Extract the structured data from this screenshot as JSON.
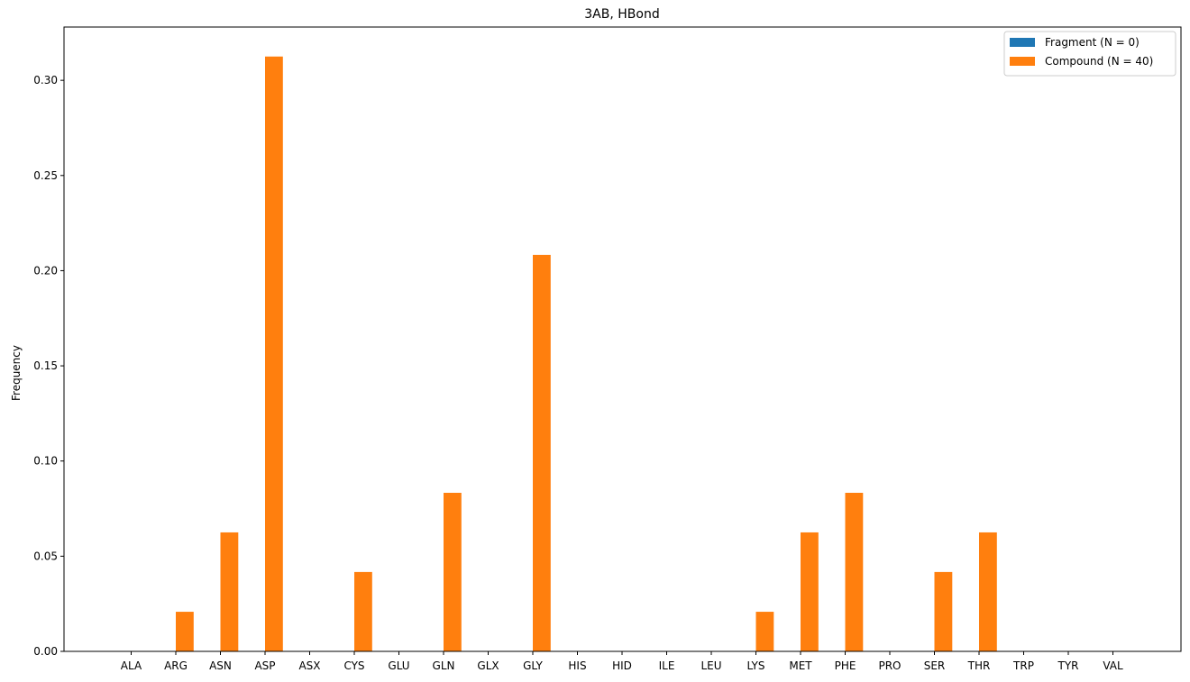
{
  "chart_data": {
    "type": "bar",
    "title": "3AB, HBond",
    "xlabel": "",
    "ylabel": "Frequency",
    "ylim": [
      0,
      0.328
    ],
    "yticks": [
      "0.00",
      "0.05",
      "0.10",
      "0.15",
      "0.20",
      "0.25",
      "0.30"
    ],
    "grid": false,
    "legend_position": "top-right",
    "categories": [
      "ALA",
      "ARG",
      "ASN",
      "ASP",
      "ASX",
      "CYS",
      "GLU",
      "GLN",
      "GLX",
      "GLY",
      "HIS",
      "HID",
      "ILE",
      "LEU",
      "LYS",
      "MET",
      "PHE",
      "PRO",
      "SER",
      "THR",
      "TRP",
      "TYR",
      "VAL"
    ],
    "series": [
      {
        "name": "Fragment (N = 0)",
        "color": "#1f77b4",
        "values": [
          0,
          0,
          0,
          0,
          0,
          0,
          0,
          0,
          0,
          0,
          0,
          0,
          0,
          0,
          0,
          0,
          0,
          0,
          0,
          0,
          0,
          0,
          0
        ]
      },
      {
        "name": "Compound (N = 40)",
        "color": "#ff7f0e",
        "values": [
          0,
          0.0208,
          0.0625,
          0.3125,
          0,
          0.0417,
          0,
          0.0833,
          0,
          0.2083,
          0,
          0,
          0,
          0,
          0.0208,
          0.0625,
          0.0833,
          0,
          0.0417,
          0.0625,
          0,
          0,
          0
        ]
      }
    ]
  }
}
